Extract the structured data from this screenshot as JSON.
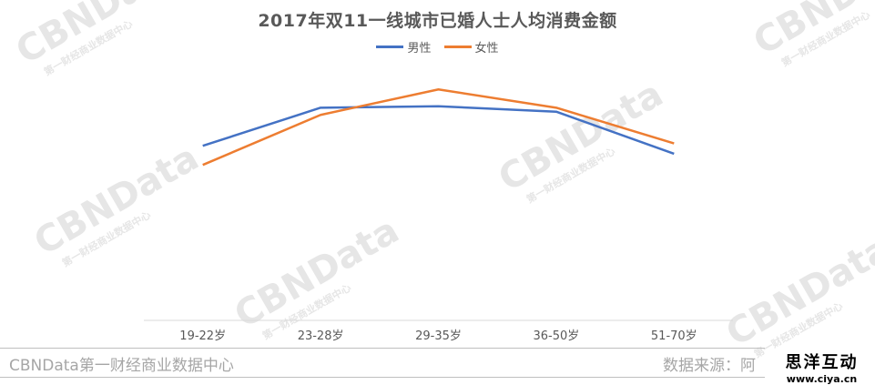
{
  "watermark": {
    "brand": "CBNData",
    "sub": "第一财经商业数据中心"
  },
  "chart_data": {
    "type": "line",
    "title": "2017年双11一线城市已婚人士人均消费金额",
    "categories": [
      "19-22岁",
      "23-28岁",
      "29-35岁",
      "36-50岁",
      "51-70岁"
    ],
    "ylim": [
      0,
      100
    ],
    "grid": false,
    "legend_position": "top-center",
    "series": [
      {
        "name": "男性",
        "color": "#4472C4",
        "values": [
          70.5,
          85.9,
          86.5,
          84.3,
          67.3
        ]
      },
      {
        "name": "女性",
        "color": "#ED7D31",
        "values": [
          62.8,
          83.0,
          93.3,
          85.9,
          71.5
        ]
      }
    ]
  },
  "footer": {
    "left": "CBNData第一财经商业数据中心",
    "right": "数据来源：阿"
  },
  "logo": {
    "main": "思洋互动",
    "sub": "www.ciya.cn"
  }
}
